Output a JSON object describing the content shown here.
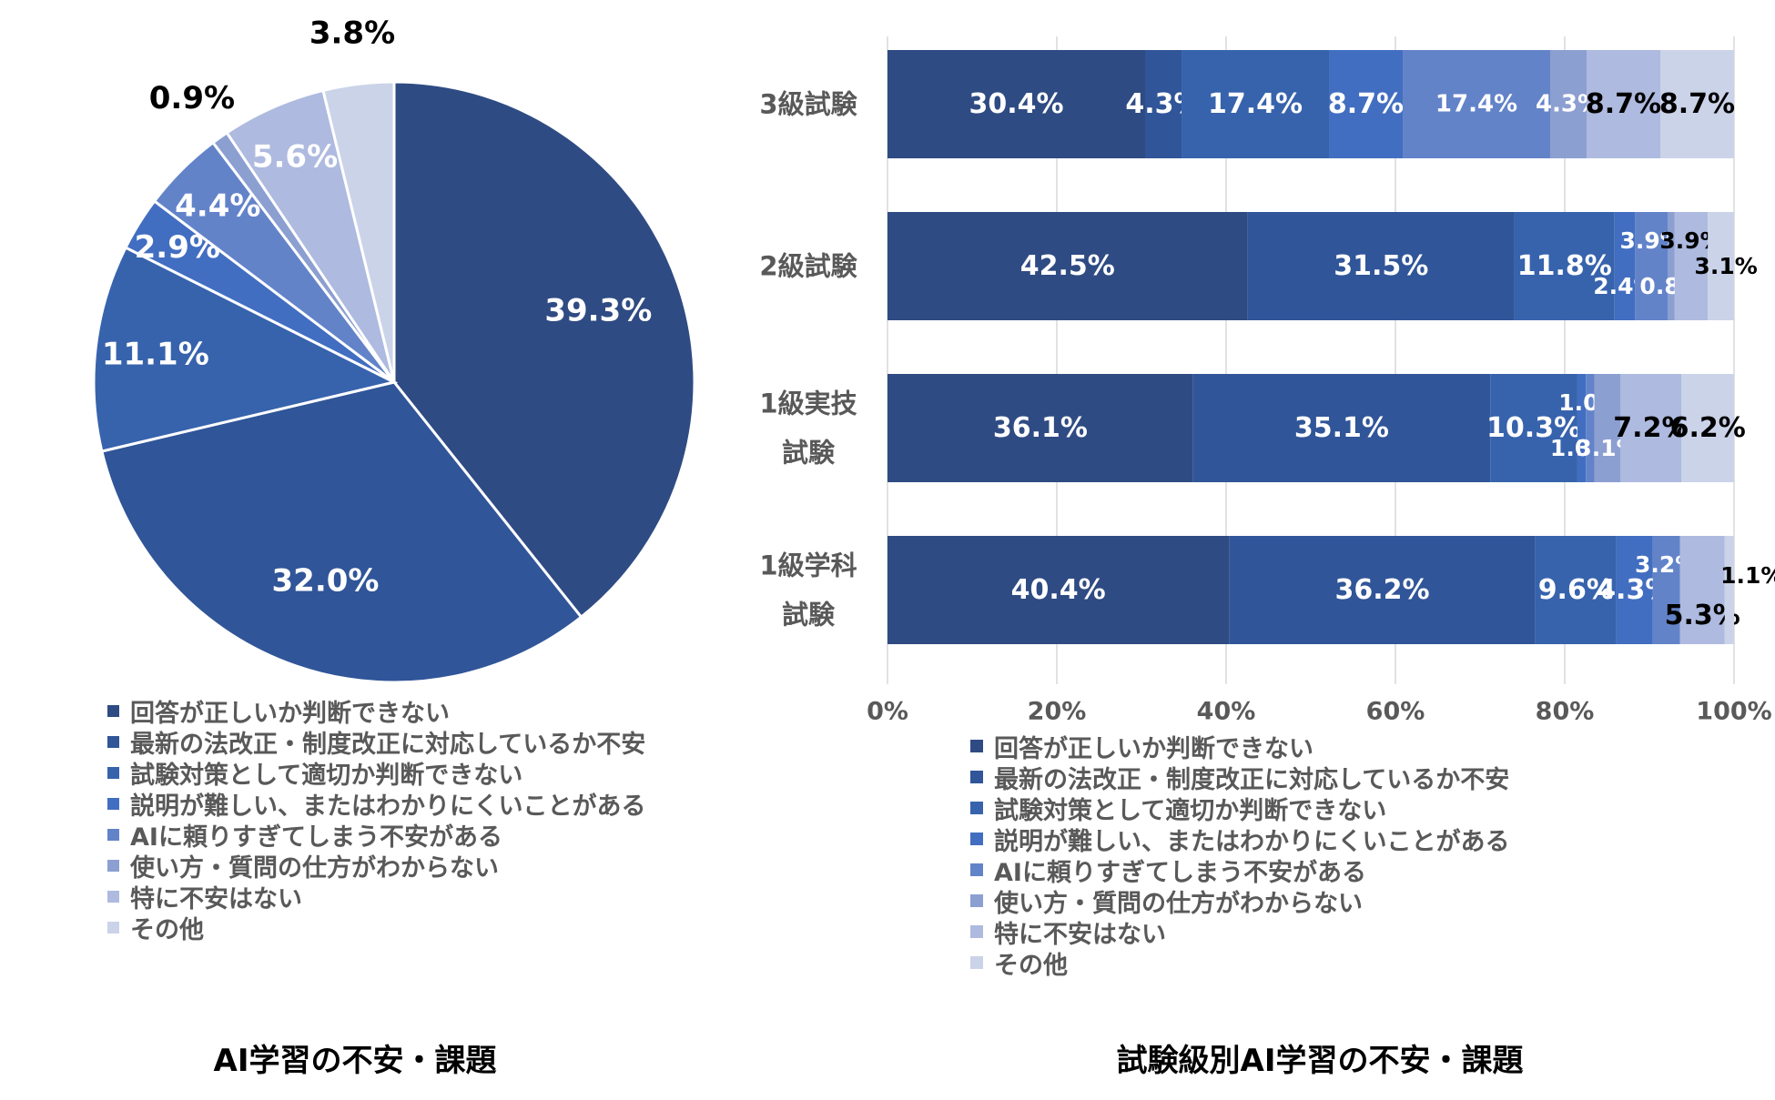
{
  "palette": [
    "#2f4b83",
    "#305598",
    "#3763ad",
    "#426ec1",
    "#6383c9",
    "#8c9fd1",
    "#aebadf",
    "#cbd3e9"
  ],
  "categories": [
    "回答が正しいか判断できない",
    "最新の法改正・制度改正に対応しているか不安",
    "試験対策として適切か判断できない",
    "説明が難しい、またはわかりにくいことがある",
    "AIに頼りすぎてしまう不安がある",
    "使い方・質問の仕方がわからない",
    "特に不安はない",
    "その他"
  ],
  "pie_caption": "AI学習の不安・課題",
  "bar_caption": "試験級別AI学習の不安・課題",
  "chart_data": [
    {
      "type": "pie",
      "title": "AI学習の不安・課題",
      "labels": [
        "回答が正しいか判断できない",
        "最新の法改正・制度改正に対応しているか不安",
        "試験対策として適切か判断できない",
        "説明が難しい、またはわかりにくいことがある",
        "AIに頼りすぎてしまう不安がある",
        "使い方・質問の仕方がわからない",
        "特に不安はない",
        "その他"
      ],
      "values": [
        39.3,
        32.0,
        11.1,
        2.9,
        4.4,
        0.9,
        5.6,
        3.8
      ],
      "data_labels": [
        "39.3%",
        "32.0%",
        "11.1%",
        "2.9%",
        "4.4%",
        "0.9%",
        "5.6%",
        "3.8%"
      ],
      "legend": "bottom"
    },
    {
      "type": "bar",
      "orientation": "horizontal",
      "stacked": "percent",
      "title": "試験級別AI学習の不安・課題",
      "categories": [
        "3級試験",
        "2級試験",
        "1級実技\n試験",
        "1級学科\n試験"
      ],
      "series": [
        {
          "name": "回答が正しいか判断できない",
          "values": [
            30.4,
            42.5,
            36.1,
            40.4
          ]
        },
        {
          "name": "最新の法改正・制度改正に対応しているか不安",
          "values": [
            4.3,
            31.5,
            35.1,
            36.2
          ]
        },
        {
          "name": "試験対策として適切か判断できない",
          "values": [
            17.4,
            11.8,
            10.3,
            9.6
          ]
        },
        {
          "name": "説明が難しい、またはわかりにくいことがある",
          "values": [
            8.7,
            2.4,
            1.0,
            4.3
          ]
        },
        {
          "name": "AIに頼りすぎてしまう不安がある",
          "values": [
            17.4,
            3.9,
            1.0,
            3.2
          ]
        },
        {
          "name": "使い方・質問の仕方がわからない",
          "values": [
            4.3,
            0.8,
            3.1,
            0
          ]
        },
        {
          "name": "特に不安はない",
          "values": [
            8.7,
            3.9,
            7.2,
            5.3
          ]
        },
        {
          "name": "その他",
          "values": [
            8.7,
            3.1,
            6.2,
            1.1
          ]
        }
      ],
      "xlim": [
        0,
        100
      ],
      "x_ticks": [
        "0%",
        "20%",
        "40%",
        "60%",
        "80%",
        "100%"
      ],
      "grid": "vertical",
      "legend": "bottom"
    }
  ]
}
